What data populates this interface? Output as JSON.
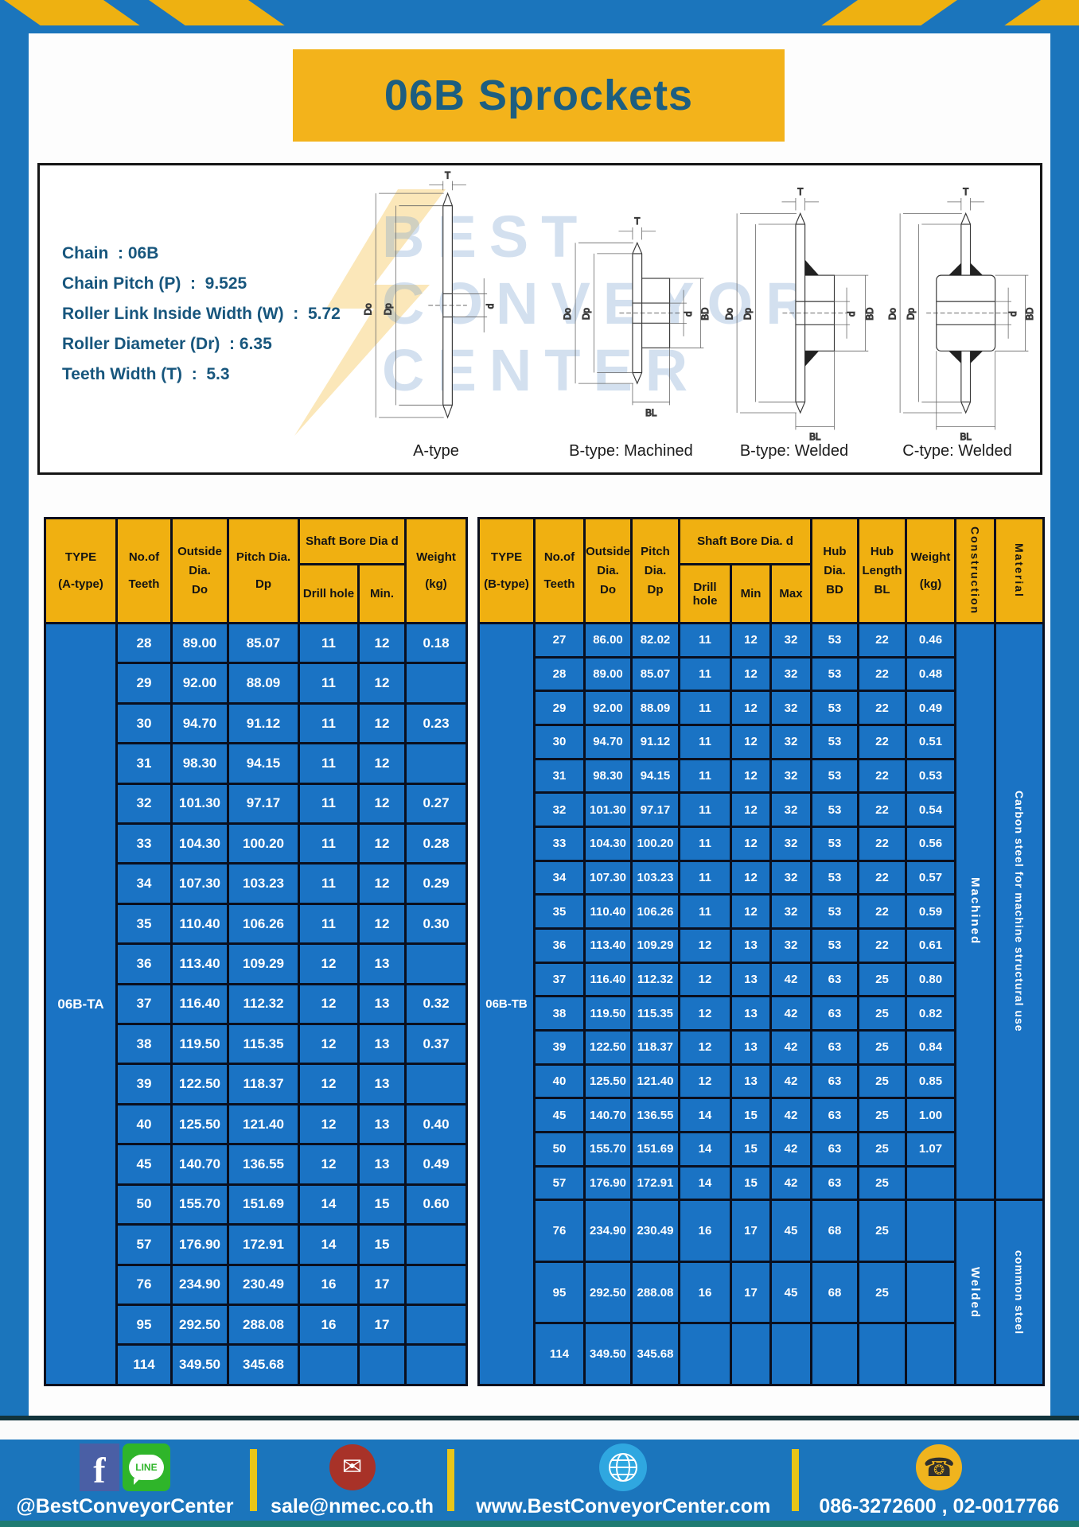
{
  "page": {
    "title": "06B Sprockets"
  },
  "colors": {
    "frame_blue": "#1b75bc",
    "cell_blue": "#1a73c4",
    "header_yellow": "#f0b011",
    "banner_yellow": "#f3b31b",
    "title_teal": "#1d5e80",
    "footer_divider_yellow": "#e9c518",
    "bottom_strip_teal": "#1e7b72"
  },
  "specs": {
    "lines": [
      "Chain  : 06B",
      "Chain Pitch (P)  :  9.525",
      "Roller Link Inside Width (W)  :  5.72",
      "Roller Diameter (Dr)  : 6.35",
      "Teeth Width (T)  :  5.3"
    ]
  },
  "diagram": {
    "captions": [
      "A-type",
      "B-type: Machined",
      "B-type: Welded",
      "C-type: Welded"
    ],
    "dim_labels": {
      "t": "T",
      "outside": "Do",
      "pitch": "Dp",
      "bore": "d",
      "hub": "BD",
      "hub_length": "BL"
    },
    "watermark_lines": [
      "BEST",
      "CONVEYOR",
      "CENTER"
    ]
  },
  "table_a": {
    "type_label": "06B-TA",
    "header": {
      "type_lines": [
        "TYPE",
        "(A-type)"
      ],
      "teeth_lines": [
        "No.of",
        "Teeth"
      ],
      "outside_lines": [
        "Outside",
        "Dia.",
        "Do"
      ],
      "pitch_lines": [
        "Pitch Dia.",
        "Dp"
      ],
      "shaft_group": "Shaft Bore Dia d",
      "drill": "Drill hole",
      "min": "Min.",
      "weight_lines": [
        "Weight",
        "(kg)"
      ]
    },
    "rows": [
      [
        "28",
        "89.00",
        "85.07",
        "11",
        "12",
        "0.18"
      ],
      [
        "29",
        "92.00",
        "88.09",
        "11",
        "12",
        ""
      ],
      [
        "30",
        "94.70",
        "91.12",
        "11",
        "12",
        "0.23"
      ],
      [
        "31",
        "98.30",
        "94.15",
        "11",
        "12",
        ""
      ],
      [
        "32",
        "101.30",
        "97.17",
        "11",
        "12",
        "0.27"
      ],
      [
        "33",
        "104.30",
        "100.20",
        "11",
        "12",
        "0.28"
      ],
      [
        "34",
        "107.30",
        "103.23",
        "11",
        "12",
        "0.29"
      ],
      [
        "35",
        "110.40",
        "106.26",
        "11",
        "12",
        "0.30"
      ],
      [
        "36",
        "113.40",
        "109.29",
        "12",
        "13",
        ""
      ],
      [
        "37",
        "116.40",
        "112.32",
        "12",
        "13",
        "0.32"
      ],
      [
        "38",
        "119.50",
        "115.35",
        "12",
        "13",
        "0.37"
      ],
      [
        "39",
        "122.50",
        "118.37",
        "12",
        "13",
        ""
      ],
      [
        "40",
        "125.50",
        "121.40",
        "12",
        "13",
        "0.40"
      ],
      [
        "45",
        "140.70",
        "136.55",
        "12",
        "13",
        "0.49"
      ],
      [
        "50",
        "155.70",
        "151.69",
        "14",
        "15",
        "0.60"
      ],
      [
        "57",
        "176.90",
        "172.91",
        "14",
        "15",
        ""
      ],
      [
        "76",
        "234.90",
        "230.49",
        "16",
        "17",
        ""
      ],
      [
        "95",
        "292.50",
        "288.08",
        "16",
        "17",
        ""
      ],
      [
        "114",
        "349.50",
        "345.68",
        "",
        "",
        ""
      ]
    ]
  },
  "table_b": {
    "type_label": "06B-TB",
    "header": {
      "type_lines": [
        "TYPE",
        "(B-type)"
      ],
      "teeth_lines": [
        "No.of",
        "Teeth"
      ],
      "outside_lines": [
        "Outside",
        "Dia.",
        "Do"
      ],
      "pitch_lines": [
        "Pitch",
        "Dia.",
        "Dp"
      ],
      "shaft_group": "Shaft Bore Dia. d",
      "drill": "Drill hole",
      "min": "Min",
      "max": "Max",
      "hub_dia_lines": [
        "Hub",
        "Dia.",
        "BD"
      ],
      "hub_len_lines": [
        "Hub",
        "Length",
        "BL"
      ],
      "weight_lines": [
        "Weight",
        "(kg)"
      ],
      "construction": "Construction",
      "material": "Material"
    },
    "construction_segments": [
      {
        "label": "Machined",
        "rows": 17
      },
      {
        "label": "Welded",
        "rows": 3
      }
    ],
    "material_segments": [
      {
        "label": "Carbon steel for machine structural use",
        "rows": 17
      },
      {
        "label": "common steel",
        "rows": 3
      }
    ],
    "rows": [
      [
        "27",
        "86.00",
        "82.02",
        "11",
        "12",
        "32",
        "53",
        "22",
        "0.46"
      ],
      [
        "28",
        "89.00",
        "85.07",
        "11",
        "12",
        "32",
        "53",
        "22",
        "0.48"
      ],
      [
        "29",
        "92.00",
        "88.09",
        "11",
        "12",
        "32",
        "53",
        "22",
        "0.49"
      ],
      [
        "30",
        "94.70",
        "91.12",
        "11",
        "12",
        "32",
        "53",
        "22",
        "0.51"
      ],
      [
        "31",
        "98.30",
        "94.15",
        "11",
        "12",
        "32",
        "53",
        "22",
        "0.53"
      ],
      [
        "32",
        "101.30",
        "97.17",
        "11",
        "12",
        "32",
        "53",
        "22",
        "0.54"
      ],
      [
        "33",
        "104.30",
        "100.20",
        "11",
        "12",
        "32",
        "53",
        "22",
        "0.56"
      ],
      [
        "34",
        "107.30",
        "103.23",
        "11",
        "12",
        "32",
        "53",
        "22",
        "0.57"
      ],
      [
        "35",
        "110.40",
        "106.26",
        "11",
        "12",
        "32",
        "53",
        "22",
        "0.59"
      ],
      [
        "36",
        "113.40",
        "109.29",
        "12",
        "13",
        "32",
        "53",
        "22",
        "0.61"
      ],
      [
        "37",
        "116.40",
        "112.32",
        "12",
        "13",
        "42",
        "63",
        "25",
        "0.80"
      ],
      [
        "38",
        "119.50",
        "115.35",
        "12",
        "13",
        "42",
        "63",
        "25",
        "0.82"
      ],
      [
        "39",
        "122.50",
        "118.37",
        "12",
        "13",
        "42",
        "63",
        "25",
        "0.84"
      ],
      [
        "40",
        "125.50",
        "121.40",
        "12",
        "13",
        "42",
        "63",
        "25",
        "0.85"
      ],
      [
        "45",
        "140.70",
        "136.55",
        "14",
        "15",
        "42",
        "63",
        "25",
        "1.00"
      ],
      [
        "50",
        "155.70",
        "151.69",
        "14",
        "15",
        "42",
        "63",
        "25",
        "1.07"
      ],
      [
        "57",
        "176.90",
        "172.91",
        "14",
        "15",
        "42",
        "63",
        "25",
        ""
      ],
      [
        "76",
        "234.90",
        "230.49",
        "16",
        "17",
        "45",
        "68",
        "25",
        ""
      ],
      [
        "95",
        "292.50",
        "288.08",
        "16",
        "17",
        "45",
        "68",
        "25",
        ""
      ],
      [
        "114",
        "349.50",
        "345.68",
        "",
        "",
        "",
        "",
        "",
        ""
      ]
    ]
  },
  "footer": {
    "line_badge_text": "LINE",
    "items": [
      {
        "icon": "facebook-line",
        "text": "@BestConveyorCenter"
      },
      {
        "icon": "mail",
        "text": "sale@nmec.co.th"
      },
      {
        "icon": "globe",
        "text": "www.BestConveyorCenter.com"
      },
      {
        "icon": "phone",
        "text": "086-3272600 , 02-0017766"
      }
    ]
  }
}
